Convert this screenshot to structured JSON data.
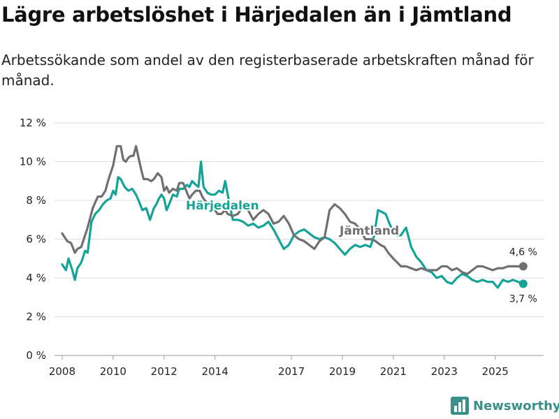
{
  "title": "Lägre arbetslöshet i Härjedalen än i Jämtland",
  "subtitle": "Arbetssökande som andel av den registerbaserade arbetskraften månad för månad.",
  "brand": "Newsworthy",
  "colors": {
    "jamtland": "#707074",
    "harjedalen": "#14a397",
    "grid": "#dddddd",
    "brand": "#3a8f8a"
  },
  "chart_data": {
    "type": "line",
    "title": "Lägre arbetslöshet i Härjedalen än i Jämtland",
    "xlabel": "",
    "ylabel": "",
    "ylim": [
      0,
      12
    ],
    "xlim": [
      2007.7,
      2026.9
    ],
    "y_ticks": [
      0,
      2,
      4,
      6,
      8,
      10,
      12
    ],
    "y_tick_labels": [
      "0 %",
      "2 %",
      "4 %",
      "6 %",
      "8 %",
      "10 %",
      "12 %"
    ],
    "x_ticks": [
      2008,
      2010,
      2012,
      2014,
      2017,
      2019,
      2021,
      2023,
      2025
    ],
    "x_tick_labels": [
      "2008",
      "2010",
      "2012",
      "2014",
      "2017",
      "2019",
      "2021",
      "2023",
      "2025"
    ],
    "series": [
      {
        "name": "Jämtland",
        "label": "Jämtland",
        "end_label": "4,6 %",
        "x": [
          2008.0,
          2008.2,
          2008.35,
          2008.5,
          2008.6,
          2008.75,
          2008.85,
          2009.0,
          2009.2,
          2009.4,
          2009.55,
          2009.7,
          2009.8,
          2009.9,
          2010.0,
          2010.15,
          2010.3,
          2010.4,
          2010.5,
          2010.6,
          2010.7,
          2010.8,
          2010.9,
          2011.0,
          2011.1,
          2011.2,
          2011.35,
          2011.5,
          2011.6,
          2011.75,
          2011.9,
          2012.0,
          2012.1,
          2012.2,
          2012.35,
          2012.5,
          2012.6,
          2012.75,
          2012.9,
          2013.0,
          2013.1,
          2013.25,
          2013.4,
          2013.5,
          2013.6,
          2013.75,
          2013.9,
          2014.0,
          2014.1,
          2014.25,
          2014.4,
          2014.5,
          2014.7,
          2014.9,
          2015.1,
          2015.3,
          2015.5,
          2015.7,
          2015.9,
          2016.1,
          2016.3,
          2016.5,
          2016.7,
          2016.9,
          2017.1,
          2017.3,
          2017.5,
          2017.7,
          2017.9,
          2018.1,
          2018.3,
          2018.5,
          2018.7,
          2018.9,
          2019.1,
          2019.3,
          2019.5,
          2019.7,
          2019.9,
          2020.1,
          2020.3,
          2020.5,
          2020.65,
          2020.8,
          2021.0,
          2021.15,
          2021.3,
          2021.5,
          2021.7,
          2021.9,
          2022.1,
          2022.3,
          2022.5,
          2022.7,
          2022.9,
          2023.1,
          2023.3,
          2023.5,
          2023.7,
          2023.9,
          2024.1,
          2024.3,
          2024.5,
          2024.7,
          2024.9,
          2025.1,
          2025.3,
          2025.5,
          2025.7,
          2025.9,
          2026.1
        ],
        "values": [
          6.3,
          5.9,
          5.8,
          5.3,
          5.5,
          5.6,
          6.0,
          6.6,
          7.6,
          8.2,
          8.2,
          8.5,
          9.0,
          9.4,
          9.8,
          10.8,
          10.8,
          10.1,
          10.0,
          10.2,
          10.3,
          10.3,
          10.8,
          10.2,
          9.6,
          9.1,
          9.1,
          9.0,
          9.1,
          9.4,
          9.2,
          8.5,
          8.7,
          8.4,
          8.6,
          8.5,
          8.9,
          8.9,
          8.4,
          8.1,
          8.3,
          8.5,
          8.5,
          8.2,
          8.0,
          7.8,
          7.6,
          7.5,
          7.3,
          7.3,
          7.5,
          7.3,
          7.2,
          7.3,
          7.7,
          7.5,
          7.0,
          7.3,
          7.5,
          7.3,
          6.8,
          6.9,
          7.2,
          6.8,
          6.2,
          6.0,
          5.9,
          5.7,
          5.5,
          5.9,
          6.1,
          7.5,
          7.8,
          7.6,
          7.3,
          6.9,
          6.8,
          6.5,
          6.0,
          6.0,
          5.9,
          5.7,
          5.6,
          5.3,
          5.0,
          4.8,
          4.6,
          4.6,
          4.5,
          4.4,
          4.5,
          4.4,
          4.4,
          4.4,
          4.6,
          4.6,
          4.4,
          4.5,
          4.3,
          4.2,
          4.4,
          4.6,
          4.6,
          4.5,
          4.4,
          4.5,
          4.5,
          4.6,
          4.6,
          4.6,
          4.6
        ],
        "color": "#707074"
      },
      {
        "name": "Härjedalen",
        "label": "Härjedalen",
        "end_label": "3,7 %",
        "x": [
          2008.0,
          2008.15,
          2008.25,
          2008.4,
          2008.5,
          2008.6,
          2008.75,
          2008.9,
          2009.0,
          2009.15,
          2009.3,
          2009.45,
          2009.6,
          2009.75,
          2009.9,
          2010.0,
          2010.1,
          2010.2,
          2010.3,
          2010.45,
          2010.6,
          2010.75,
          2010.9,
          2011.0,
          2011.15,
          2011.3,
          2011.45,
          2011.6,
          2011.7,
          2011.8,
          2011.9,
          2012.0,
          2012.1,
          2012.2,
          2012.35,
          2012.5,
          2012.6,
          2012.75,
          2012.9,
          2013.0,
          2013.1,
          2013.25,
          2013.35,
          2013.45,
          2013.55,
          2013.7,
          2013.85,
          2014.0,
          2014.15,
          2014.3,
          2014.4,
          2014.5,
          2014.7,
          2014.9,
          2015.1,
          2015.3,
          2015.5,
          2015.7,
          2015.9,
          2016.1,
          2016.3,
          2016.5,
          2016.7,
          2016.9,
          2017.1,
          2017.3,
          2017.5,
          2017.7,
          2017.9,
          2018.1,
          2018.3,
          2018.5,
          2018.7,
          2018.9,
          2019.1,
          2019.3,
          2019.5,
          2019.7,
          2019.9,
          2020.1,
          2020.25,
          2020.4,
          2020.55,
          2020.7,
          2020.85,
          2021.0,
          2021.15,
          2021.3,
          2021.5,
          2021.7,
          2021.9,
          2022.1,
          2022.3,
          2022.5,
          2022.7,
          2022.9,
          2023.1,
          2023.3,
          2023.5,
          2023.7,
          2023.9,
          2024.1,
          2024.3,
          2024.5,
          2024.7,
          2024.9,
          2025.1,
          2025.3,
          2025.5,
          2025.7,
          2025.9,
          2026.1
        ],
        "values": [
          4.7,
          4.4,
          5.0,
          4.4,
          3.9,
          4.5,
          4.8,
          5.4,
          5.3,
          6.9,
          7.3,
          7.5,
          7.8,
          8.0,
          8.1,
          8.5,
          8.3,
          9.2,
          9.1,
          8.7,
          8.5,
          8.6,
          8.3,
          8.0,
          7.5,
          7.6,
          7.0,
          7.6,
          7.8,
          8.1,
          8.3,
          8.1,
          7.5,
          7.8,
          8.3,
          8.2,
          8.6,
          8.6,
          8.8,
          8.7,
          9.0,
          8.8,
          8.7,
          10.0,
          8.7,
          8.4,
          8.3,
          8.3,
          8.5,
          8.4,
          9.0,
          8.3,
          7.0,
          7.0,
          6.9,
          6.7,
          6.8,
          6.6,
          6.7,
          6.9,
          6.5,
          6.0,
          5.5,
          5.7,
          6.2,
          6.4,
          6.5,
          6.3,
          6.1,
          6.0,
          6.1,
          6.0,
          5.8,
          5.5,
          5.2,
          5.5,
          5.7,
          5.6,
          5.7,
          5.6,
          6.2,
          7.5,
          7.4,
          7.3,
          6.8,
          6.4,
          6.2,
          6.2,
          6.6,
          5.6,
          5.1,
          4.8,
          4.4,
          4.3,
          4.0,
          4.1,
          3.8,
          3.7,
          4.0,
          4.2,
          4.1,
          3.9,
          3.8,
          3.9,
          3.8,
          3.8,
          3.5,
          3.9,
          3.8,
          3.9,
          3.8,
          3.7
        ],
        "color": "#14a397"
      }
    ]
  }
}
